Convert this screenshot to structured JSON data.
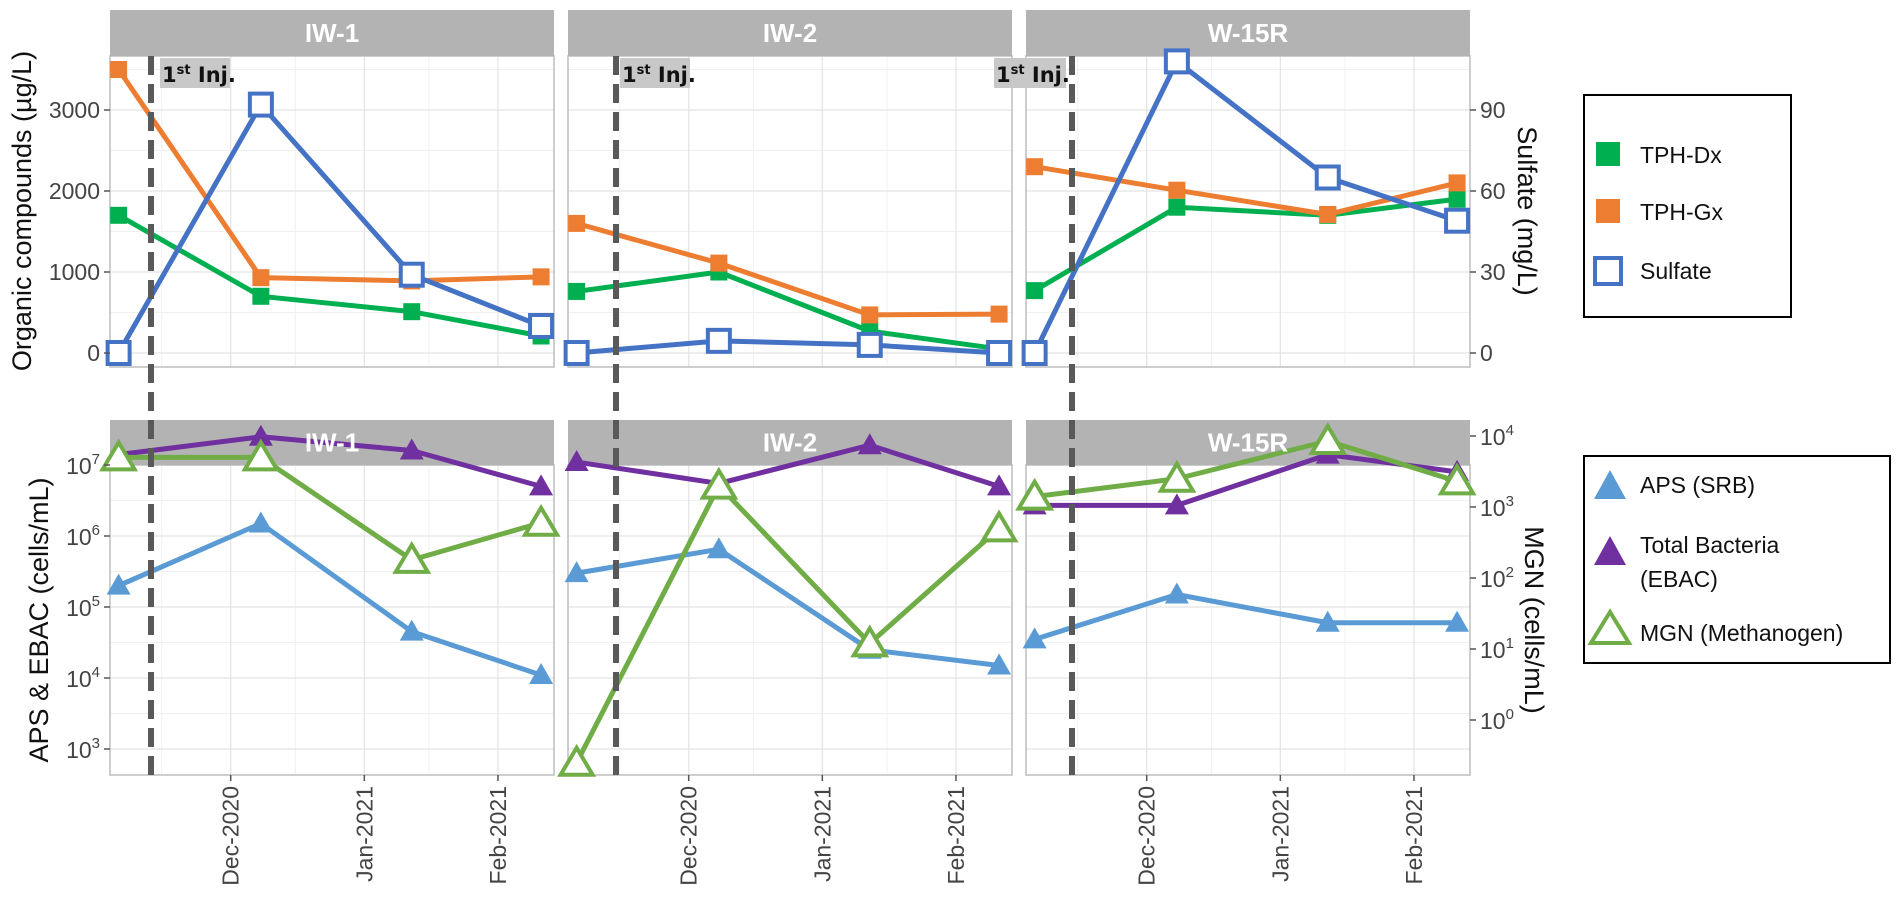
{
  "chart_data": [
    {
      "type": "line",
      "panel": "top",
      "facets": [
        "IW-1",
        "IW-2",
        "W-15R"
      ],
      "x_dates": [
        "2020-11-05",
        "2020-12-08",
        "2021-01-12",
        "2021-02-11"
      ],
      "xtick_labels": [
        "Dec-2020",
        "Jan-2021",
        "Feb-2021"
      ],
      "ylabel_left": "Organic compounds (µg/L)",
      "ylabel_right": "Sulfate (mg/L)",
      "left_ticks": [
        "0",
        "1000",
        "2000",
        "3000"
      ],
      "right_ticks": [
        "0",
        "30",
        "60",
        "90"
      ],
      "ylim_left": [
        -150,
        3650
      ],
      "series": [
        {
          "name": "TPH-Dx",
          "color": "#00b050",
          "axis": "left",
          "marker": "filled-square",
          "values": {
            "IW-1": [
              1700,
              700,
              510,
              210
            ],
            "IW-2": [
              760,
              1000,
              270,
              50
            ],
            "W-15R": [
              770,
              1800,
              1700,
              1900
            ]
          }
        },
        {
          "name": "TPH-Gx",
          "color": "#ed7d31",
          "axis": "left",
          "marker": "filled-square",
          "values": {
            "IW-1": [
              3500,
              930,
              890,
              940
            ],
            "IW-2": [
              1600,
              1110,
              470,
              480
            ],
            "W-15R": [
              2300,
              2010,
              1710,
              2100
            ]
          }
        },
        {
          "name": "Sulfate",
          "color": "#4472c4",
          "axis": "right",
          "marker": "open-square",
          "values": {
            "IW-1": [
              0,
              92,
              29,
              10
            ],
            "IW-2": [
              0,
              4.5,
              3,
              0
            ],
            "W-15R": [
              0,
              108,
              65,
              49
            ]
          }
        }
      ]
    },
    {
      "type": "line",
      "panel": "bottom",
      "facets": [
        "IW-1",
        "IW-2",
        "W-15R"
      ],
      "x_dates": [
        "2020-11-05",
        "2020-12-08",
        "2021-01-12",
        "2021-02-11"
      ],
      "xtick_labels": [
        "Dec-2020",
        "Jan-2021",
        "Feb-2021"
      ],
      "ylabel_left": "APS & EBAC (cells/mL)",
      "ylabel_right": "MGN (cells/mL)",
      "left_ticks": [
        {
          "base": "10",
          "exp": "3"
        },
        {
          "base": "10",
          "exp": "4"
        },
        {
          "base": "10",
          "exp": "5"
        },
        {
          "base": "10",
          "exp": "6"
        },
        {
          "base": "10",
          "exp": "7"
        }
      ],
      "right_ticks": [
        {
          "base": "10",
          "exp": "0"
        },
        {
          "base": "10",
          "exp": "1"
        },
        {
          "base": "10",
          "exp": "2"
        },
        {
          "base": "10",
          "exp": "3"
        },
        {
          "base": "10",
          "exp": "4"
        }
      ],
      "scale": "log10",
      "series": [
        {
          "name": "APS (SRB)",
          "color": "#5b9bd5",
          "axis": "left",
          "marker": "filled-triangle",
          "values": {
            "IW-1": [
              200000.0,
              1500000.0,
              45000.0,
              11000.0
            ],
            "IW-2": [
              300000.0,
              650000.0,
              25000.0,
              15000.0
            ],
            "W-15R": [
              35000.0,
              150000.0,
              60000.0,
              60000.0
            ]
          }
        },
        {
          "name": "Total Bacteria (EBAC)",
          "color": "#7030a0",
          "axis": "left",
          "marker": "filled-triangle",
          "values": {
            "IW-1": [
              14000000.0,
              25000000.0,
              16000000.0,
              5000000.0
            ],
            "IW-2": [
              11000000.0,
              5500000.0,
              19000000.0,
              5000000.0
            ],
            "W-15R": [
              2700000.0,
              2700000.0,
              14000000.0,
              8000000.0
            ]
          }
        },
        {
          "name": "MGN (Methanogen)",
          "color": "#70ad47",
          "axis": "right",
          "marker": "open-triangle",
          "values": {
            "IW-1": [
              5000,
              5000,
              180,
              600
            ],
            "IW-2": [
              0.25,
              2000,
              12,
              500
            ],
            "W-15R": [
              1400,
              2500,
              8500,
              2300
            ]
          }
        }
      ]
    }
  ],
  "injection": {
    "label_base": "1",
    "label_sup": "st",
    "label_rest": " Inj.",
    "date": "2020-11-11"
  },
  "legend_top": [
    "TPH-Dx",
    "TPH-Gx",
    "Sulfate"
  ],
  "legend_bottom": [
    "APS (SRB)",
    "Total Bacteria",
    "(EBAC)",
    "MGN (Methanogen)"
  ]
}
